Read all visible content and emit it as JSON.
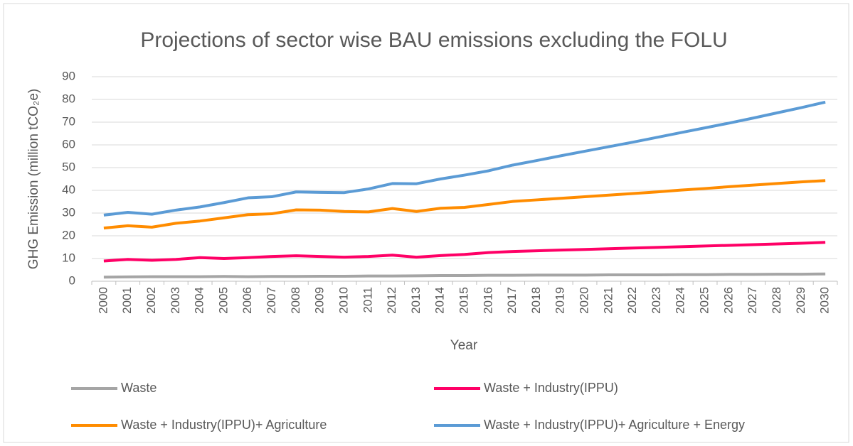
{
  "chart_data": {
    "type": "line",
    "title": "Projections of sector wise BAU emissions excluding the FOLU",
    "xlabel": "Year",
    "ylabel": "GHG Emission (million tCO₂e)",
    "categories": [
      "2000",
      "2001",
      "2002",
      "2003",
      "2004",
      "2005",
      "2006",
      "2007",
      "2008",
      "2009",
      "2010",
      "2011",
      "2012",
      "2013",
      "2014",
      "2015",
      "2016",
      "2017",
      "2018",
      "2019",
      "2020",
      "2021",
      "2022",
      "2023",
      "2024",
      "2025",
      "2026",
      "2027",
      "2028",
      "2029",
      "2030"
    ],
    "series": [
      {
        "name": "Waste",
        "color": "#a5a5a5",
        "values": [
          1.8,
          1.9,
          2.0,
          2.0,
          2.0,
          2.1,
          2.0,
          2.1,
          2.1,
          2.2,
          2.2,
          2.3,
          2.3,
          2.4,
          2.5,
          2.5,
          2.6,
          2.6,
          2.7,
          2.7,
          2.7,
          2.8,
          2.8,
          2.8,
          2.9,
          2.9,
          3.0,
          3.0,
          3.1,
          3.1,
          3.2
        ]
      },
      {
        "name": "Waste + Industry(IPPU)",
        "color": "#ff0066",
        "values": [
          8.9,
          9.6,
          9.2,
          9.6,
          10.4,
          10.0,
          10.4,
          10.9,
          11.2,
          10.9,
          10.6,
          10.9,
          11.5,
          10.6,
          11.3,
          11.8,
          12.6,
          13.1,
          13.4,
          13.7,
          14.0,
          14.3,
          14.6,
          14.9,
          15.2,
          15.5,
          15.8,
          16.1,
          16.4,
          16.7,
          17.1
        ]
      },
      {
        "name": "Waste + Industry(IPPU)+ Agriculture",
        "color": "#ff8c00",
        "values": [
          23.4,
          24.4,
          23.8,
          25.5,
          26.5,
          27.9,
          29.3,
          29.7,
          31.4,
          31.3,
          30.7,
          30.5,
          32.0,
          30.7,
          32.1,
          32.5,
          33.8,
          35.1,
          35.8,
          36.5,
          37.2,
          37.9,
          38.6,
          39.3,
          40.1,
          40.8,
          41.6,
          42.3,
          43.0,
          43.7,
          44.3
        ]
      },
      {
        "name": "Waste + Industry(IPPU)+ Agriculture + Energy",
        "color": "#5b9bd5",
        "values": [
          29.1,
          30.3,
          29.5,
          31.3,
          32.7,
          34.6,
          36.7,
          37.2,
          39.3,
          39.1,
          39.0,
          40.6,
          43.0,
          42.9,
          45.0,
          46.7,
          48.6,
          51.1,
          53.1,
          55.2,
          57.2,
          59.2,
          61.2,
          63.3,
          65.4,
          67.5,
          69.6,
          71.8,
          74.1,
          76.4,
          78.8
        ]
      }
    ],
    "ylim": [
      0,
      90
    ],
    "yticks": [
      0,
      10,
      20,
      30,
      40,
      50,
      60,
      70,
      80,
      90
    ],
    "grid": true,
    "legend": "bottom"
  }
}
